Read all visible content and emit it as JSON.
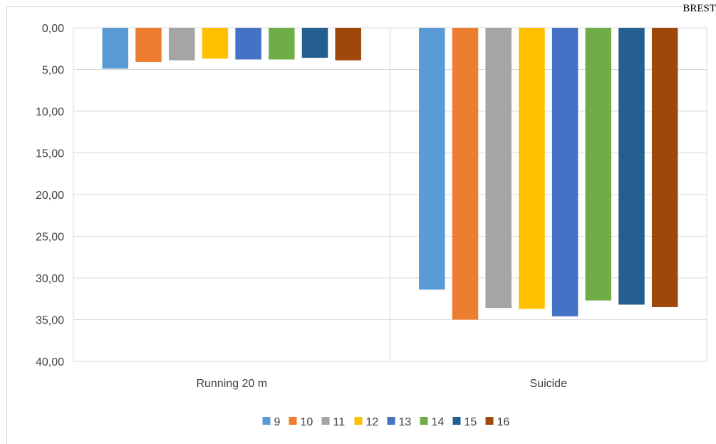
{
  "corner_text": "BREST",
  "chart_data": {
    "type": "bar",
    "orientation": "vertical",
    "y_axis_reversed": true,
    "categories": [
      "Running 20 m",
      "Suicide"
    ],
    "series": [
      {
        "name": "9",
        "color": "#5b9bd5",
        "values": [
          4.9,
          31.4
        ]
      },
      {
        "name": "10",
        "color": "#ed7d31",
        "values": [
          4.1,
          35.0
        ]
      },
      {
        "name": "11",
        "color": "#a5a5a5",
        "values": [
          3.9,
          33.6
        ]
      },
      {
        "name": "12",
        "color": "#ffc000",
        "values": [
          3.7,
          33.7
        ]
      },
      {
        "name": "13",
        "color": "#4472c4",
        "values": [
          3.8,
          34.6
        ]
      },
      {
        "name": "14",
        "color": "#70ad47",
        "values": [
          3.8,
          32.7
        ]
      },
      {
        "name": "15",
        "color": "#255e91",
        "values": [
          3.6,
          33.2
        ]
      },
      {
        "name": "16",
        "color": "#9e480e",
        "values": [
          3.9,
          33.5
        ]
      }
    ],
    "ylim": [
      0,
      40
    ],
    "y_ticks": [
      "0,00",
      "5,00",
      "10,00",
      "15,00",
      "20,00",
      "25,00",
      "30,00",
      "35,00",
      "40,00"
    ],
    "grid": true,
    "legend_position": "bottom"
  }
}
